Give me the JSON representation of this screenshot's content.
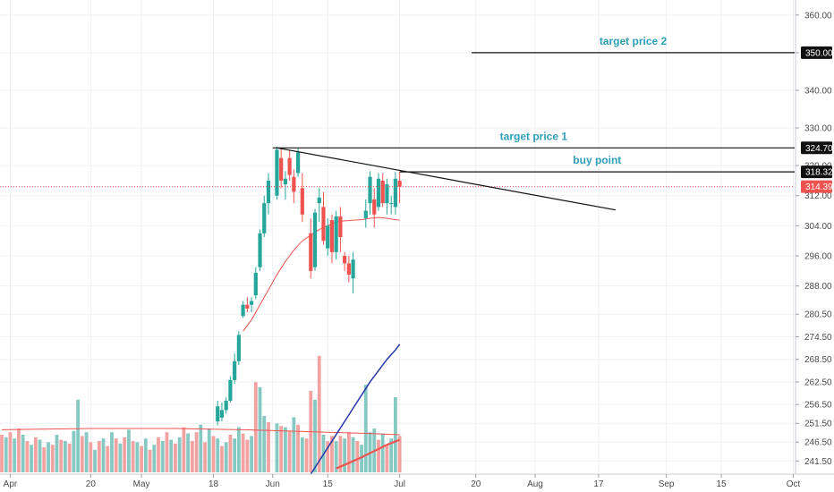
{
  "chart_data": {
    "type": "candlestick",
    "price_axis": {
      "ticks": [
        "360.00",
        "350.00",
        "340.00",
        "330.00",
        "320.00",
        "312.00",
        "304.00",
        "296.00",
        "288.00",
        "280.50",
        "274.50",
        "268.50",
        "262.50",
        "256.50",
        "251.50",
        "246.50",
        "241.50"
      ],
      "range": [
        238,
        364
      ]
    },
    "time_axis": {
      "ticks": [
        "Apr",
        "20",
        "May",
        "18",
        "Jun",
        "15",
        "Jul",
        "20",
        "Aug",
        "17",
        "Sep",
        "15",
        "Oct"
      ],
      "tick_days": [
        1,
        20,
        32,
        49,
        63,
        76,
        93,
        111,
        125,
        140,
        156,
        169,
        186
      ],
      "range_days": [
        -1,
        196
      ]
    },
    "grid": true,
    "price_tags": [
      {
        "value": 350.0,
        "text": "350.00",
        "color": "#111111"
      },
      {
        "value": 324.7,
        "text": "324.70",
        "color": "#111111"
      },
      {
        "value": 318.32,
        "text": "318.32",
        "color": "#111111"
      },
      {
        "value": 314.39,
        "text": "314.39",
        "color": "#ef5350"
      }
    ],
    "levels": [
      {
        "label": "target price 2",
        "price": 350.0,
        "start_day": 110
      },
      {
        "label": "target price 1",
        "price": 324.7,
        "start_day": 63
      },
      {
        "label": "buy point",
        "price": 318.32,
        "start_day": 93
      }
    ],
    "last_price": 314.39,
    "trendline": {
      "from": {
        "day": 64,
        "price": 324.7
      },
      "to": {
        "day": 144,
        "price": 308.2
      }
    },
    "candles": [
      {
        "day": 50,
        "o": 252,
        "h": 257.5,
        "l": 251,
        "c": 256
      },
      {
        "day": 51,
        "o": 253,
        "h": 257,
        "l": 252,
        "c": 255
      },
      {
        "day": 52,
        "o": 255,
        "h": 258.5,
        "l": 254,
        "c": 257.5
      },
      {
        "day": 53,
        "o": 257.5,
        "h": 264,
        "l": 257,
        "c": 263
      },
      {
        "day": 54,
        "o": 263,
        "h": 270,
        "l": 262,
        "c": 268
      },
      {
        "day": 55,
        "o": 268,
        "h": 276,
        "l": 267,
        "c": 275
      },
      {
        "day": 56,
        "o": 280,
        "h": 284,
        "l": 279.5,
        "c": 283
      },
      {
        "day": 57,
        "o": 283,
        "h": 285,
        "l": 281,
        "c": 282
      },
      {
        "day": 58,
        "o": 283,
        "h": 285,
        "l": 281,
        "c": 284
      },
      {
        "day": 59,
        "o": 285.5,
        "h": 293,
        "l": 284.5,
        "c": 291.5
      },
      {
        "day": 60,
        "o": 293,
        "h": 303,
        "l": 292,
        "c": 302
      },
      {
        "day": 61,
        "o": 302,
        "h": 312,
        "l": 301,
        "c": 310
      },
      {
        "day": 62,
        "o": 310,
        "h": 318,
        "l": 307,
        "c": 316
      },
      {
        "day": 64,
        "o": 312,
        "h": 325,
        "l": 311,
        "c": 324.2
      },
      {
        "day": 65,
        "o": 322,
        "h": 324.8,
        "l": 314,
        "c": 316
      },
      {
        "day": 66,
        "o": 315,
        "h": 318.5,
        "l": 311,
        "c": 316.5
      },
      {
        "day": 67,
        "o": 322,
        "h": 324,
        "l": 316,
        "c": 317.5
      },
      {
        "day": 68,
        "o": 317,
        "h": 319,
        "l": 310,
        "c": 313
      },
      {
        "day": 69,
        "o": 318,
        "h": 324.5,
        "l": 317,
        "c": 323.5
      },
      {
        "day": 70,
        "o": 314,
        "h": 318,
        "l": 305,
        "c": 307
      },
      {
        "day": 72,
        "o": 302,
        "h": 306,
        "l": 290,
        "c": 292
      },
      {
        "day": 73,
        "o": 293,
        "h": 308.5,
        "l": 292,
        "c": 307.5
      },
      {
        "day": 74,
        "o": 310,
        "h": 314,
        "l": 305,
        "c": 311.5
      },
      {
        "day": 75,
        "o": 309,
        "h": 313,
        "l": 299,
        "c": 300
      },
      {
        "day": 76,
        "o": 298,
        "h": 306,
        "l": 296,
        "c": 304
      },
      {
        "day": 77,
        "o": 305.5,
        "h": 307,
        "l": 294,
        "c": 297
      },
      {
        "day": 78,
        "o": 297,
        "h": 308,
        "l": 295,
        "c": 306.5
      },
      {
        "day": 79,
        "o": 306.5,
        "h": 309,
        "l": 297,
        "c": 301
      },
      {
        "day": 80,
        "o": 296,
        "h": 297,
        "l": 292,
        "c": 294
      },
      {
        "day": 81,
        "o": 294,
        "h": 296,
        "l": 289,
        "c": 291
      },
      {
        "day": 82,
        "o": 290,
        "h": 297,
        "l": 286,
        "c": 295
      },
      {
        "day": 85,
        "o": 306,
        "h": 311,
        "l": 303.5,
        "c": 308
      },
      {
        "day": 86,
        "o": 310,
        "h": 318.5,
        "l": 307,
        "c": 317
      },
      {
        "day": 87,
        "o": 311,
        "h": 314,
        "l": 303.5,
        "c": 307
      },
      {
        "day": 88,
        "o": 309,
        "h": 318,
        "l": 308,
        "c": 316.5
      },
      {
        "day": 89,
        "o": 316,
        "h": 318,
        "l": 309,
        "c": 310
      },
      {
        "day": 90,
        "o": 310,
        "h": 316.5,
        "l": 307,
        "c": 315
      },
      {
        "day": 91,
        "o": 310,
        "h": 312,
        "l": 307,
        "c": 310
      },
      {
        "day": 92,
        "o": 309,
        "h": 318.3,
        "l": 307,
        "c": 316.5
      },
      {
        "day": 93,
        "o": 316,
        "h": 318.3,
        "l": 310,
        "c": 314.4
      }
    ],
    "ma_short": {
      "color": "#ef5350",
      "points": [
        [
          56,
          276
        ],
        [
          58,
          279
        ],
        [
          60,
          283
        ],
        [
          62,
          287
        ],
        [
          64,
          291
        ],
        [
          66,
          294.5
        ],
        [
          68,
          297.5
        ],
        [
          70,
          300
        ],
        [
          72,
          301.5
        ],
        [
          74,
          303
        ],
        [
          76,
          304
        ],
        [
          78,
          305
        ],
        [
          80,
          305.3
        ],
        [
          82,
          305.5
        ],
        [
          84,
          305.6
        ],
        [
          86,
          306
        ],
        [
          88,
          306.2
        ],
        [
          90,
          306
        ],
        [
          92,
          305.6
        ],
        [
          93,
          305.5
        ]
      ]
    },
    "ma_long": {
      "color": "#2337a8",
      "points": [
        [
          72,
          238
        ],
        [
          74,
          241.5
        ],
        [
          76,
          245
        ],
        [
          78,
          248.5
        ],
        [
          80,
          252
        ],
        [
          82,
          255.5
        ],
        [
          84,
          259
        ],
        [
          86,
          262.5
        ],
        [
          88,
          265.5
        ],
        [
          90,
          268.5
        ],
        [
          92,
          271
        ],
        [
          93,
          272.5
        ]
      ]
    },
    "volume": {
      "up_color": "#85c9c2",
      "down_color": "#f2a2a1",
      "bars": [
        {
          "day": -1,
          "v": 0.3,
          "up": false
        },
        {
          "day": 0,
          "v": 0.28,
          "up": true
        },
        {
          "day": 1,
          "v": 0.32,
          "up": false
        },
        {
          "day": 2,
          "v": 0.27,
          "up": true
        },
        {
          "day": 3,
          "v": 0.35,
          "up": false
        },
        {
          "day": 4,
          "v": 0.3,
          "up": true
        },
        {
          "day": 5,
          "v": 0.25,
          "up": false
        },
        {
          "day": 6,
          "v": 0.22,
          "up": true
        },
        {
          "day": 7,
          "v": 0.28,
          "up": false
        },
        {
          "day": 8,
          "v": 0.26,
          "up": true
        },
        {
          "day": 9,
          "v": 0.2,
          "up": false
        },
        {
          "day": 10,
          "v": 0.24,
          "up": true
        },
        {
          "day": 11,
          "v": 0.22,
          "up": false
        },
        {
          "day": 12,
          "v": 0.3,
          "up": true
        },
        {
          "day": 13,
          "v": 0.26,
          "up": false
        },
        {
          "day": 14,
          "v": 0.25,
          "up": true
        },
        {
          "day": 15,
          "v": 0.23,
          "up": false
        },
        {
          "day": 16,
          "v": 0.33,
          "up": true
        },
        {
          "day": 17,
          "v": 0.58,
          "up": true
        },
        {
          "day": 18,
          "v": 0.29,
          "up": false
        },
        {
          "day": 19,
          "v": 0.32,
          "up": true
        },
        {
          "day": 20,
          "v": 0.24,
          "up": false
        },
        {
          "day": 21,
          "v": 0.18,
          "up": true
        },
        {
          "day": 22,
          "v": 0.25,
          "up": false
        },
        {
          "day": 23,
          "v": 0.27,
          "up": true
        },
        {
          "day": 24,
          "v": 0.21,
          "up": false
        },
        {
          "day": 25,
          "v": 0.32,
          "up": true
        },
        {
          "day": 26,
          "v": 0.27,
          "up": false
        },
        {
          "day": 27,
          "v": 0.23,
          "up": true
        },
        {
          "day": 28,
          "v": 0.28,
          "up": false
        },
        {
          "day": 29,
          "v": 0.34,
          "up": true
        },
        {
          "day": 30,
          "v": 0.25,
          "up": false
        },
        {
          "day": 31,
          "v": 0.24,
          "up": true
        },
        {
          "day": 32,
          "v": 0.21,
          "up": false
        },
        {
          "day": 33,
          "v": 0.27,
          "up": true
        },
        {
          "day": 34,
          "v": 0.18,
          "up": false
        },
        {
          "day": 35,
          "v": 0.22,
          "up": true
        },
        {
          "day": 36,
          "v": 0.28,
          "up": false
        },
        {
          "day": 37,
          "v": 0.25,
          "up": true
        },
        {
          "day": 38,
          "v": 0.32,
          "up": false
        },
        {
          "day": 39,
          "v": 0.26,
          "up": true
        },
        {
          "day": 40,
          "v": 0.23,
          "up": false
        },
        {
          "day": 41,
          "v": 0.28,
          "up": true
        },
        {
          "day": 42,
          "v": 0.36,
          "up": false
        },
        {
          "day": 43,
          "v": 0.31,
          "up": true
        },
        {
          "day": 44,
          "v": 0.25,
          "up": false
        },
        {
          "day": 45,
          "v": 0.32,
          "up": false
        },
        {
          "day": 46,
          "v": 0.38,
          "up": true
        },
        {
          "day": 47,
          "v": 0.24,
          "up": false
        },
        {
          "day": 48,
          "v": 0.35,
          "up": true
        },
        {
          "day": 49,
          "v": 0.29,
          "up": false
        },
        {
          "day": 50,
          "v": 0.27,
          "up": true
        },
        {
          "day": 51,
          "v": 0.21,
          "up": false
        },
        {
          "day": 52,
          "v": 0.24,
          "up": true
        },
        {
          "day": 53,
          "v": 0.3,
          "up": false
        },
        {
          "day": 54,
          "v": 0.27,
          "up": true
        },
        {
          "day": 55,
          "v": 0.36,
          "up": true
        },
        {
          "day": 56,
          "v": 0.31,
          "up": false
        },
        {
          "day": 57,
          "v": 0.26,
          "up": false
        },
        {
          "day": 58,
          "v": 0.29,
          "up": true
        },
        {
          "day": 59,
          "v": 0.72,
          "up": false
        },
        {
          "day": 60,
          "v": 0.68,
          "up": true
        },
        {
          "day": 61,
          "v": 0.45,
          "up": true
        },
        {
          "day": 62,
          "v": 0.4,
          "up": false
        },
        {
          "day": 64,
          "v": 0.39,
          "up": true
        },
        {
          "day": 65,
          "v": 0.37,
          "up": false
        },
        {
          "day": 66,
          "v": 0.36,
          "up": true
        },
        {
          "day": 67,
          "v": 0.33,
          "up": false
        },
        {
          "day": 68,
          "v": 0.44,
          "up": true
        },
        {
          "day": 69,
          "v": 0.38,
          "up": false
        },
        {
          "day": 70,
          "v": 0.28,
          "up": true
        },
        {
          "day": 71,
          "v": 0.27,
          "up": false
        },
        {
          "day": 72,
          "v": 0.65,
          "up": false
        },
        {
          "day": 73,
          "v": 0.58,
          "up": true
        },
        {
          "day": 74,
          "v": 0.93,
          "up": false
        },
        {
          "day": 75,
          "v": 0.3,
          "up": true
        },
        {
          "day": 76,
          "v": 0.25,
          "up": false
        },
        {
          "day": 77,
          "v": 0.29,
          "up": false
        },
        {
          "day": 78,
          "v": 0.25,
          "up": true
        },
        {
          "day": 79,
          "v": 0.29,
          "up": false
        },
        {
          "day": 80,
          "v": 0.27,
          "up": true
        },
        {
          "day": 81,
          "v": 0.32,
          "up": false
        },
        {
          "day": 82,
          "v": 0.28,
          "up": true
        },
        {
          "day": 83,
          "v": 0.25,
          "up": false
        },
        {
          "day": 84,
          "v": 0.22,
          "up": true
        },
        {
          "day": 85,
          "v": 0.7,
          "up": true
        },
        {
          "day": 86,
          "v": 0.32,
          "up": true
        },
        {
          "day": 87,
          "v": 0.35,
          "up": true
        },
        {
          "day": 88,
          "v": 0.26,
          "up": false
        },
        {
          "day": 89,
          "v": 0.31,
          "up": true
        },
        {
          "day": 90,
          "v": 0.22,
          "up": false
        },
        {
          "day": 91,
          "v": 0.27,
          "up": true
        },
        {
          "day": 92,
          "v": 0.6,
          "up": true
        },
        {
          "day": 93,
          "v": 0.29,
          "up": false
        }
      ],
      "avg_line": [
        [
          -1,
          0.34
        ],
        [
          20,
          0.35
        ],
        [
          40,
          0.35
        ],
        [
          56,
          0.34
        ],
        [
          66,
          0.33
        ],
        [
          76,
          0.32
        ],
        [
          86,
          0.31
        ],
        [
          93,
          0.3
        ]
      ],
      "avg_line_color": "#ef5350",
      "ma_overlay": [
        [
          78,
          0.03
        ],
        [
          84,
          0.12
        ],
        [
          90,
          0.22
        ],
        [
          93,
          0.26
        ]
      ],
      "ma_overlay_color": "#ef5350"
    }
  }
}
